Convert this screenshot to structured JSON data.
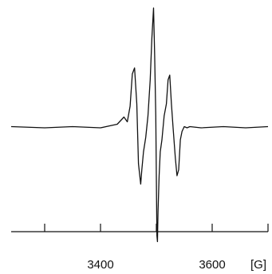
{
  "chart_data": {
    "type": "line",
    "title": "",
    "xlabel": "",
    "ylabel": "",
    "unit_label": "[G]",
    "grid": false,
    "legend": "none",
    "xlim": [
      3240,
      3700
    ],
    "ylim": [
      -1.0,
      1.0
    ],
    "x_ticks": [
      3300,
      3400,
      3500,
      3600,
      3700
    ],
    "x_tick_labels": [
      {
        "value": 3400,
        "label": "3400"
      },
      {
        "value": 3600,
        "label": "3600"
      }
    ],
    "series": [
      {
        "x": [
          3240,
          3300,
          3350,
          3400,
          3420,
          3430,
          3436,
          3442,
          3448,
          3453,
          3457,
          3461,
          3465,
          3468,
          3472,
          3474,
          3477,
          3481,
          3485,
          3489,
          3492,
          3495,
          3497,
          3499,
          3501,
          3502,
          3503,
          3505,
          3507,
          3510,
          3514,
          3518,
          3521,
          3524,
          3527,
          3530,
          3534,
          3537,
          3540,
          3543,
          3546,
          3550,
          3555,
          3560,
          3580,
          3620,
          3660,
          3700
        ],
        "y": [
          0.01,
          0.0,
          0.01,
          0.0,
          0.02,
          0.03,
          0.06,
          0.09,
          0.05,
          0.18,
          0.45,
          0.5,
          0.2,
          -0.3,
          -0.47,
          -0.35,
          -0.2,
          -0.08,
          0.1,
          0.4,
          0.75,
          1.0,
          0.6,
          0.1,
          -0.9,
          -0.95,
          -0.7,
          -0.4,
          -0.2,
          -0.1,
          0.1,
          0.2,
          0.4,
          0.44,
          0.2,
          0.0,
          -0.25,
          -0.4,
          -0.35,
          -0.1,
          -0.03,
          0.01,
          0.0,
          0.01,
          0.0,
          0.01,
          0.0,
          0.01
        ]
      }
    ]
  }
}
